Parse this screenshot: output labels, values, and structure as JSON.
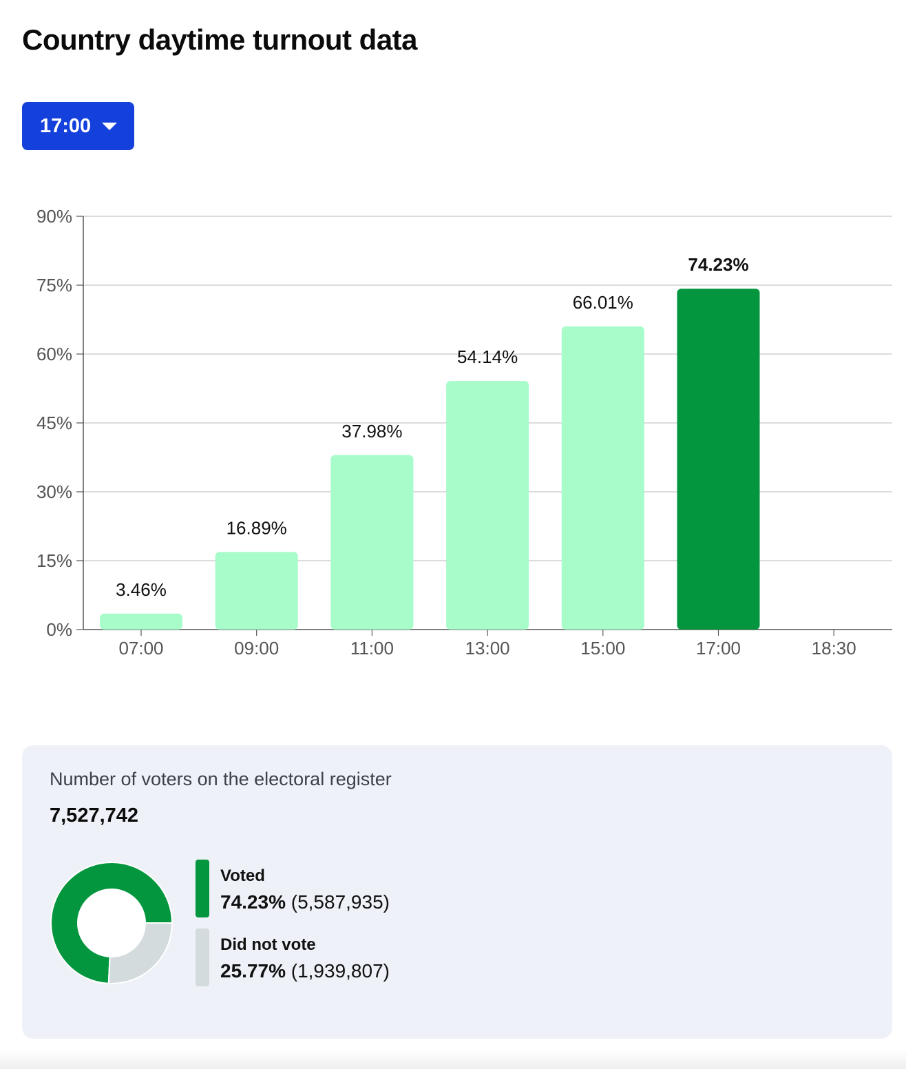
{
  "page": {
    "title": "Country daytime turnout data"
  },
  "selector": {
    "value": "17:00"
  },
  "colors": {
    "bar": "#a7fcca",
    "bar_selected": "#04963f",
    "not_voted": "#d3dbdd",
    "accent": "#1440dc"
  },
  "chart_data": {
    "type": "bar",
    "categories": [
      "07:00",
      "09:00",
      "11:00",
      "13:00",
      "15:00",
      "17:00",
      "18:30"
    ],
    "values": [
      3.46,
      16.89,
      37.98,
      54.14,
      66.01,
      74.23,
      null
    ],
    "value_labels": [
      "3.46%",
      "16.89%",
      "37.98%",
      "54.14%",
      "66.01%",
      "74.23%",
      ""
    ],
    "selected": "17:00",
    "ylim": [
      0,
      90
    ],
    "yticks": [
      0,
      15,
      30,
      45,
      60,
      75,
      90
    ],
    "ytick_labels": [
      "0%",
      "15%",
      "30%",
      "45%",
      "60%",
      "75%",
      "90%"
    ],
    "grid": true,
    "title": "",
    "xlabel": "",
    "ylabel": ""
  },
  "summary": {
    "register_label": "Number of voters on the electoral register",
    "register_value": "7,527,742",
    "breakdown": [
      {
        "name": "Voted",
        "percent_label": "74.23%",
        "count_label": "(5,587,935)",
        "value": 74.23
      },
      {
        "name": "Did not vote",
        "percent_label": "25.77%",
        "count_label": "(1,939,807)",
        "value": 25.77
      }
    ]
  }
}
